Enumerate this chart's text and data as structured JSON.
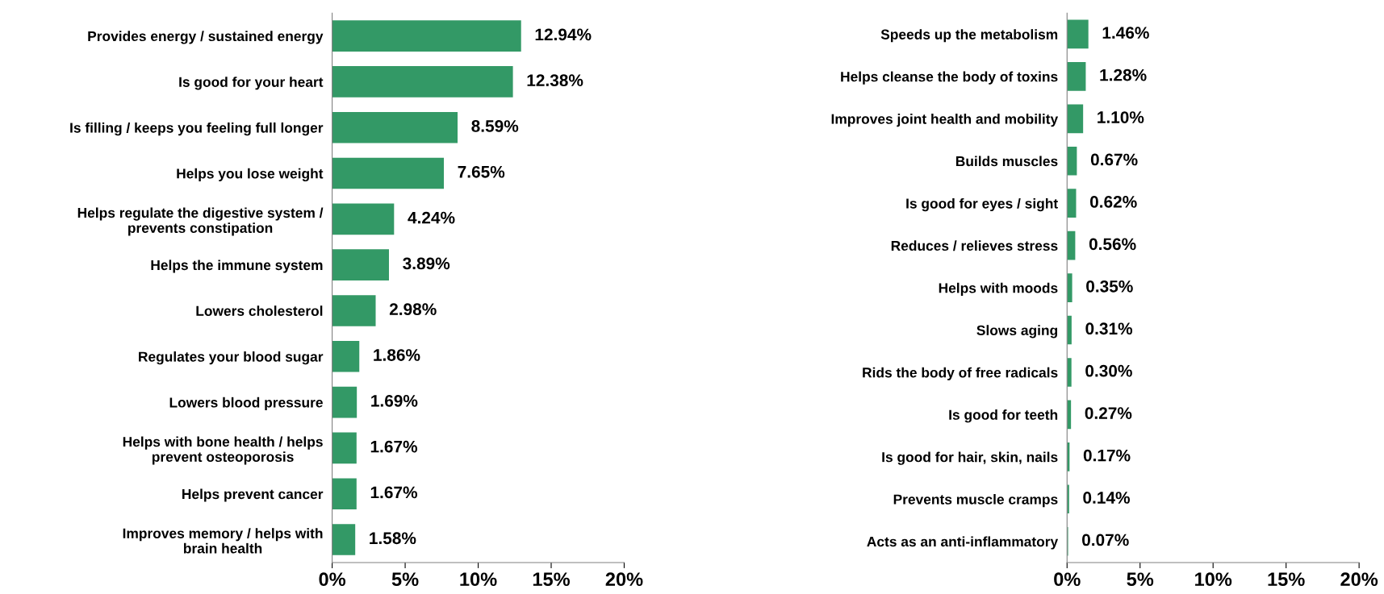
{
  "chart_data": [
    {
      "type": "bar",
      "orientation": "horizontal",
      "categories": [
        "Provides energy / sustained energy",
        "Is good for your heart",
        "Is filling / keeps you feeling full longer",
        "Helps you lose weight",
        "Helps regulate the digestive system /\nprevents constipation",
        "Helps the immune system",
        "Lowers cholesterol",
        "Regulates your blood sugar",
        "Lowers blood pressure",
        "Helps with bone health / helps\nprevent osteoporosis",
        "Helps prevent cancer",
        "Improves memory / helps with\nbrain health"
      ],
      "values": [
        12.94,
        12.38,
        8.59,
        7.65,
        4.24,
        3.89,
        2.98,
        1.86,
        1.69,
        1.67,
        1.67,
        1.58
      ],
      "value_labels": [
        "12.94%",
        "12.38%",
        "8.59%",
        "7.65%",
        "4.24%",
        "3.89%",
        "2.98%",
        "1.86%",
        "1.69%",
        "1.67%",
        "1.67%",
        "1.58%"
      ],
      "color": "#339966",
      "xlim": [
        0,
        20
      ],
      "xticks": [
        {
          "value": 0,
          "label": "0%"
        },
        {
          "value": 5,
          "label": "5%"
        },
        {
          "value": 10,
          "label": "10%"
        },
        {
          "value": 15,
          "label": "15%"
        },
        {
          "value": 20,
          "label": "20%"
        }
      ],
      "grid": false,
      "legend": false
    },
    {
      "type": "bar",
      "orientation": "horizontal",
      "categories": [
        "Speeds up the metabolism",
        "Helps cleanse the body of toxins",
        "Improves joint health and mobility",
        "Builds muscles",
        "Is good for eyes / sight",
        "Reduces / relieves stress",
        "Helps with moods",
        "Slows aging",
        "Rids the body of free radicals",
        "Is good for teeth",
        "Is good for hair, skin, nails",
        "Prevents muscle cramps",
        "Acts as an anti-inflammatory"
      ],
      "values": [
        1.46,
        1.28,
        1.1,
        0.67,
        0.62,
        0.56,
        0.35,
        0.31,
        0.3,
        0.27,
        0.17,
        0.14,
        0.07
      ],
      "value_labels": [
        "1.46%",
        "1.28%",
        "1.10%",
        "0.67%",
        "0.62%",
        "0.56%",
        "0.35%",
        "0.31%",
        "0.30%",
        "0.27%",
        "0.17%",
        "0.14%",
        "0.07%"
      ],
      "color": "#339966",
      "xlim": [
        0,
        20
      ],
      "xticks": [
        {
          "value": 0,
          "label": "0%"
        },
        {
          "value": 5,
          "label": "5%"
        },
        {
          "value": 10,
          "label": "10%"
        },
        {
          "value": 15,
          "label": "15%"
        },
        {
          "value": 20,
          "label": "20%"
        }
      ],
      "grid": false,
      "legend": false
    }
  ]
}
